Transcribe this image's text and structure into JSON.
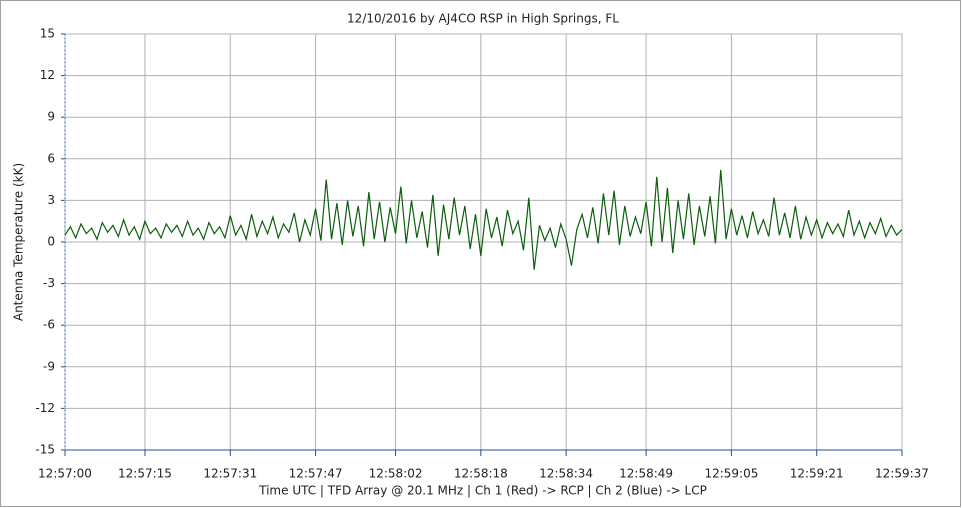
{
  "chart_data": {
    "type": "line",
    "title": "12/10/2016  by  AJ4CO RSP  in  High Springs, FL",
    "ylabel": "Antenna Temperature (kK)",
    "xlabel": "Time UTC    |    TFD Array @ 20.1 MHz    |    Ch 1 (Red) -> RCP    |    Ch 2 (Blue)  -> LCP",
    "color": "#0b5e0b",
    "grid": true,
    "ylim": [
      -15,
      15
    ],
    "yticks": [
      -15,
      -12,
      -9,
      -6,
      -3,
      0,
      3,
      6,
      9,
      12,
      15
    ],
    "xlim": [
      0,
      157
    ],
    "xticks": [
      {
        "value": 0,
        "label": "12:57:00"
      },
      {
        "value": 15,
        "label": "12:57:15"
      },
      {
        "value": 31,
        "label": "12:57:31"
      },
      {
        "value": 47,
        "label": "12:57:47"
      },
      {
        "value": 62,
        "label": "12:58:02"
      },
      {
        "value": 78,
        "label": "12:58:18"
      },
      {
        "value": 94,
        "label": "12:58:34"
      },
      {
        "value": 109,
        "label": "12:58:49"
      },
      {
        "value": 125,
        "label": "12:59:05"
      },
      {
        "value": 141,
        "label": "12:59:21"
      },
      {
        "value": 157,
        "label": "12:59:37"
      }
    ],
    "x": [
      0,
      1,
      2,
      3,
      4,
      5,
      6,
      7,
      8,
      9,
      10,
      11,
      12,
      13,
      14,
      15,
      16,
      17,
      18,
      19,
      20,
      21,
      22,
      23,
      24,
      25,
      26,
      27,
      28,
      29,
      30,
      31,
      32,
      33,
      34,
      35,
      36,
      37,
      38,
      39,
      40,
      41,
      42,
      43,
      44,
      45,
      46,
      47,
      48,
      49,
      50,
      51,
      52,
      53,
      54,
      55,
      56,
      57,
      58,
      59,
      60,
      61,
      62,
      63,
      64,
      65,
      66,
      67,
      68,
      69,
      70,
      71,
      72,
      73,
      74,
      75,
      76,
      77,
      78,
      79,
      80,
      81,
      82,
      83,
      84,
      85,
      86,
      87,
      88,
      89,
      90,
      91,
      92,
      93,
      94,
      95,
      96,
      97,
      98,
      99,
      100,
      101,
      102,
      103,
      104,
      105,
      106,
      107,
      108,
      109,
      110,
      111,
      112,
      113,
      114,
      115,
      116,
      117,
      118,
      119,
      120,
      121,
      122,
      123,
      124,
      125,
      126,
      127,
      128,
      129,
      130,
      131,
      132,
      133,
      134,
      135,
      136,
      137,
      138,
      139,
      140,
      141,
      142,
      143,
      144,
      145,
      146,
      147,
      148,
      149,
      150,
      151,
      152,
      153,
      154,
      155,
      156,
      157
    ],
    "values": [
      0.5,
      1.1,
      0.3,
      1.3,
      0.6,
      1.0,
      0.2,
      1.4,
      0.7,
      1.2,
      0.4,
      1.6,
      0.5,
      1.1,
      0.2,
      1.5,
      0.6,
      1.0,
      0.3,
      1.3,
      0.7,
      1.2,
      0.4,
      1.5,
      0.5,
      1.0,
      0.2,
      1.4,
      0.6,
      1.1,
      0.3,
      1.9,
      0.5,
      1.2,
      0.2,
      2.0,
      0.4,
      1.5,
      0.6,
      1.8,
      0.3,
      1.3,
      0.7,
      2.1,
      0.0,
      1.6,
      0.5,
      2.4,
      0.1,
      4.5,
      0.2,
      2.8,
      -0.2,
      3.0,
      0.4,
      2.6,
      -0.3,
      3.6,
      0.2,
      2.9,
      0.0,
      2.5,
      0.6,
      4.0,
      -0.1,
      3.0,
      0.3,
      2.2,
      -0.4,
      3.4,
      -1.0,
      2.7,
      0.2,
      3.2,
      0.5,
      2.6,
      -0.5,
      2.0,
      -1.0,
      2.4,
      0.3,
      1.8,
      -0.3,
      2.3,
      0.6,
      1.5,
      -0.6,
      3.2,
      -2.0,
      1.2,
      0.1,
      1.0,
      -0.4,
      1.3,
      0.2,
      -1.7,
      0.9,
      2.0,
      0.3,
      2.5,
      -0.1,
      3.5,
      0.5,
      3.7,
      -0.2,
      2.6,
      0.4,
      1.8,
      0.6,
      2.9,
      -0.3,
      4.7,
      0.0,
      3.9,
      -0.8,
      3.0,
      0.2,
      3.5,
      -0.2,
      2.6,
      0.4,
      3.3,
      -0.1,
      5.2,
      0.2,
      2.4,
      0.5,
      1.9,
      0.3,
      2.2,
      0.6,
      1.6,
      0.4,
      3.2,
      0.5,
      2.1,
      0.3,
      2.6,
      0.2,
      1.8,
      0.5,
      1.6,
      0.3,
      1.4,
      0.6,
      1.3,
      0.4,
      2.3,
      0.5,
      1.5,
      0.3,
      1.4,
      0.6,
      1.7,
      0.4,
      1.2,
      0.5,
      0.9
    ]
  }
}
